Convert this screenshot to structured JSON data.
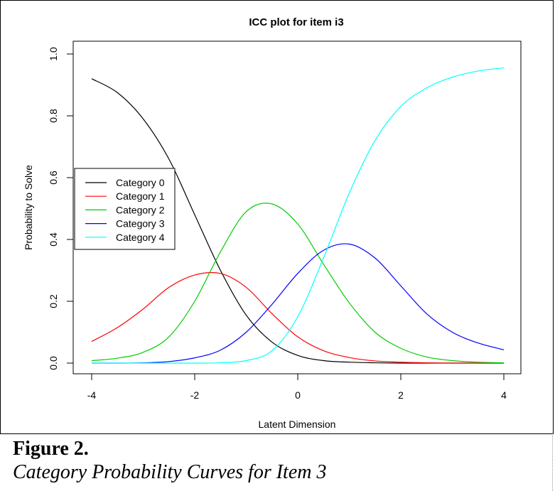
{
  "chart_data": {
    "type": "line",
    "title": "ICC plot for item i3",
    "xlabel": "Latent Dimension",
    "ylabel": "Probability to Solve",
    "xlim": [
      -4,
      4
    ],
    "ylim": [
      0,
      1
    ],
    "x_ticks": [
      "-4",
      "-2",
      "0",
      "2",
      "4"
    ],
    "y_ticks": [
      "0.0",
      "0.2",
      "0.4",
      "0.6",
      "0.8",
      "1.0"
    ],
    "legend_position": "left",
    "grid": false,
    "x": [
      -4.0,
      -3.5,
      -3.0,
      -2.5,
      -2.0,
      -1.5,
      -1.0,
      -0.5,
      0.0,
      0.5,
      1.0,
      1.5,
      2.0,
      2.5,
      3.0,
      3.5,
      4.0
    ],
    "series": [
      {
        "name": "Category 0",
        "color": "#000000",
        "values": [
          0.92,
          0.875,
          0.79,
          0.66,
          0.48,
          0.3,
          0.155,
          0.068,
          0.025,
          0.008,
          0.003,
          0.001,
          0.0,
          0.0,
          0.0,
          0.0,
          0.0
        ]
      },
      {
        "name": "Category 1",
        "color": "#ff0000",
        "values": [
          0.07,
          0.115,
          0.175,
          0.245,
          0.285,
          0.29,
          0.245,
          0.16,
          0.085,
          0.04,
          0.018,
          0.007,
          0.003,
          0.001,
          0.0,
          0.0,
          0.0
        ]
      },
      {
        "name": "Category 2",
        "color": "#00cd00",
        "values": [
          0.008,
          0.016,
          0.035,
          0.085,
          0.2,
          0.36,
          0.49,
          0.515,
          0.45,
          0.32,
          0.195,
          0.1,
          0.048,
          0.02,
          0.008,
          0.003,
          0.001
        ]
      },
      {
        "name": "Category 3",
        "color": "#0000ff",
        "values": [
          0.0,
          0.0,
          0.001,
          0.005,
          0.017,
          0.042,
          0.1,
          0.19,
          0.29,
          0.365,
          0.385,
          0.34,
          0.25,
          0.16,
          0.1,
          0.065,
          0.043
        ]
      },
      {
        "name": "Category 4",
        "color": "#00ffff",
        "values": [
          0.0,
          0.0,
          0.0,
          0.0,
          0.0,
          0.001,
          0.008,
          0.04,
          0.15,
          0.34,
          0.55,
          0.72,
          0.83,
          0.89,
          0.925,
          0.945,
          0.955
        ]
      }
    ]
  },
  "caption": {
    "figure_number": "Figure 2.",
    "figure_title": "Category Probability Curves for Item 3"
  }
}
